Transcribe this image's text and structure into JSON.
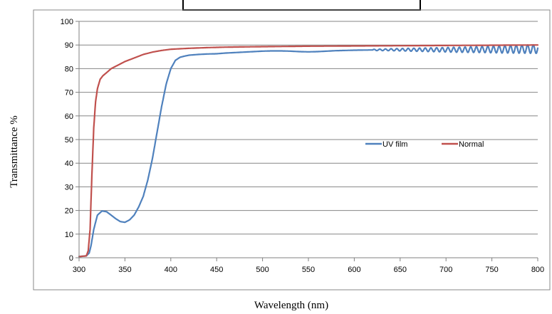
{
  "chart_data": {
    "type": "line",
    "title": "",
    "xlabel": "Wavelength (nm)",
    "ylabel": "Transmittance %",
    "xlim": [
      300,
      800
    ],
    "ylim": [
      0,
      100
    ],
    "x_ticks": [
      "300",
      "350",
      "400",
      "450",
      "500",
      "550",
      "600",
      "650",
      "700",
      "750",
      "800"
    ],
    "y_ticks": [
      "0",
      "10",
      "20",
      "30",
      "40",
      "50",
      "60",
      "70",
      "80",
      "90",
      "100"
    ],
    "grid": "horizontal",
    "legend_position": "right-center",
    "series": [
      {
        "name": "UV film",
        "color": "#4f81bd",
        "x": [
          300,
          308,
          311,
          313,
          316,
          320,
          325,
          330,
          335,
          340,
          345,
          350,
          355,
          360,
          365,
          370,
          375,
          380,
          385,
          390,
          395,
          400,
          405,
          410,
          415,
          420,
          430,
          440,
          450,
          460,
          470,
          480,
          490,
          500,
          510,
          520,
          530,
          540,
          550,
          560,
          570,
          580,
          590,
          600,
          620,
          640,
          660,
          680,
          700,
          720,
          740,
          760,
          780,
          800
        ],
        "values": [
          0.5,
          0.8,
          2,
          5,
          12,
          18,
          19.8,
          19.5,
          18,
          16.5,
          15.3,
          15,
          16,
          18,
          21.5,
          26,
          33,
          42,
          53,
          64,
          73.5,
          80,
          83.5,
          84.8,
          85.3,
          85.7,
          86,
          86.2,
          86.3,
          86.6,
          86.8,
          87,
          87.2,
          87.4,
          87.5,
          87.5,
          87.4,
          87.2,
          87.1,
          87.2,
          87.4,
          87.6,
          87.7,
          87.8,
          87.9,
          88,
          88,
          88,
          88,
          88,
          88.1,
          88.1,
          88.2,
          88.3
        ],
        "oscillation_start": 620
      },
      {
        "name": "Normal",
        "color": "#c0504d",
        "x": [
          300,
          308,
          310,
          312,
          314,
          316,
          318,
          320,
          323,
          326,
          330,
          335,
          340,
          345,
          350,
          360,
          370,
          380,
          390,
          400,
          420,
          440,
          460,
          500,
          550,
          600,
          650,
          700,
          750,
          800
        ],
        "values": [
          0.5,
          0.8,
          3,
          12,
          35,
          55,
          66,
          71.5,
          75.5,
          77,
          78.3,
          80,
          81,
          82,
          83,
          84.5,
          86,
          87,
          87.7,
          88.2,
          88.6,
          88.9,
          89.1,
          89.3,
          89.5,
          89.6,
          89.7,
          89.8,
          89.9,
          90
        ]
      }
    ]
  }
}
